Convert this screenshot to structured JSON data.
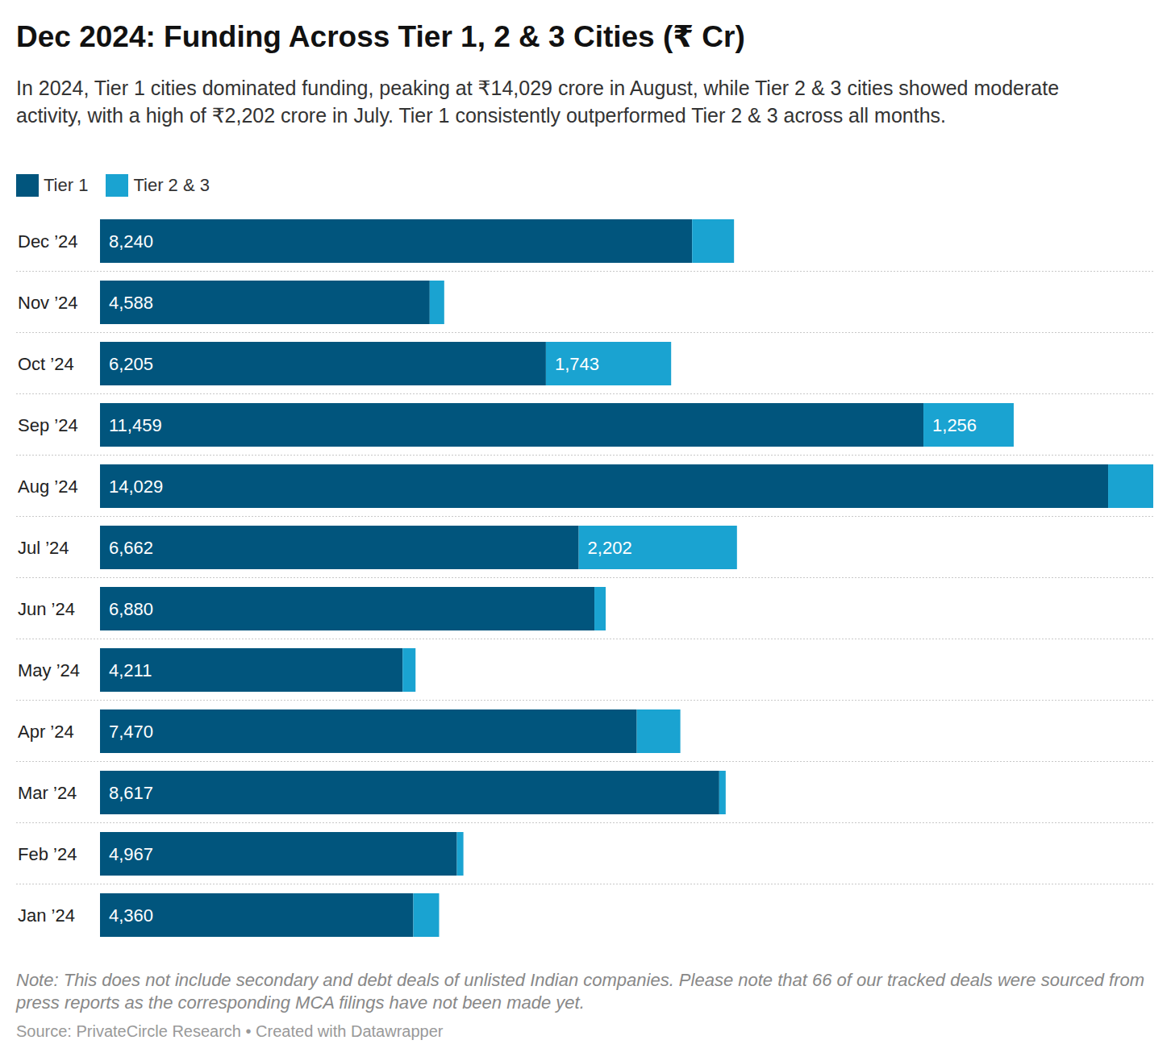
{
  "chart_data": {
    "type": "bar",
    "orientation": "horizontal",
    "stacked": true,
    "data_labels": true,
    "tick_labels": "y",
    "grid": false,
    "legend": "top-left",
    "title": "Dec 2024: Funding Across Tier 1, 2 & 3 Cities (₹ Cr)",
    "subtitle": "In 2024, Tier 1 cities dominated funding, peaking at ₹14,029 crore in August, while Tier 2 & 3 cities showed moderate activity, with a high of ₹2,202 crore in July. Tier 1 consistently outperformed Tier 2 & 3 across all months.",
    "note": "Note: This does not include secondary and debt deals of unlisted Indian companies. Please note that 66 of our tracked deals were sourced from press reports as the corresponding MCA filings have not been made yet.",
    "source": "Source: PrivateCircle Research • Created with Datawrapper",
    "categories": [
      "Dec ’24",
      "Nov ’24",
      "Oct ’24",
      "Sep ’24",
      "Aug ’24",
      "Jul ’24",
      "Jun ’24",
      "May ’24",
      "Apr ’24",
      "Mar ’24",
      "Feb ’24",
      "Jan ’24"
    ],
    "xlim": [
      0,
      14657
    ],
    "series": [
      {
        "name": "Tier 1",
        "color": "#01557d",
        "values": [
          8240,
          4588,
          6205,
          11459,
          14029,
          6662,
          6880,
          4211,
          7470,
          8617,
          4967,
          4360
        ],
        "value_labels": [
          "8,240",
          "4,588",
          "6,205",
          "11,459",
          "14,029",
          "6,662",
          "6,880",
          "4,211",
          "7,470",
          "8,617",
          "4,967",
          "4,360"
        ]
      },
      {
        "name": "Tier 2 & 3",
        "color": "#1aa3d1",
        "values": [
          583,
          202,
          1743,
          1256,
          628,
          2202,
          157,
          180,
          606,
          90,
          90,
          359
        ],
        "value_labels": [
          null,
          null,
          "1,743",
          "1,256",
          null,
          "2,202",
          null,
          null,
          null,
          null,
          null,
          null
        ]
      }
    ]
  }
}
